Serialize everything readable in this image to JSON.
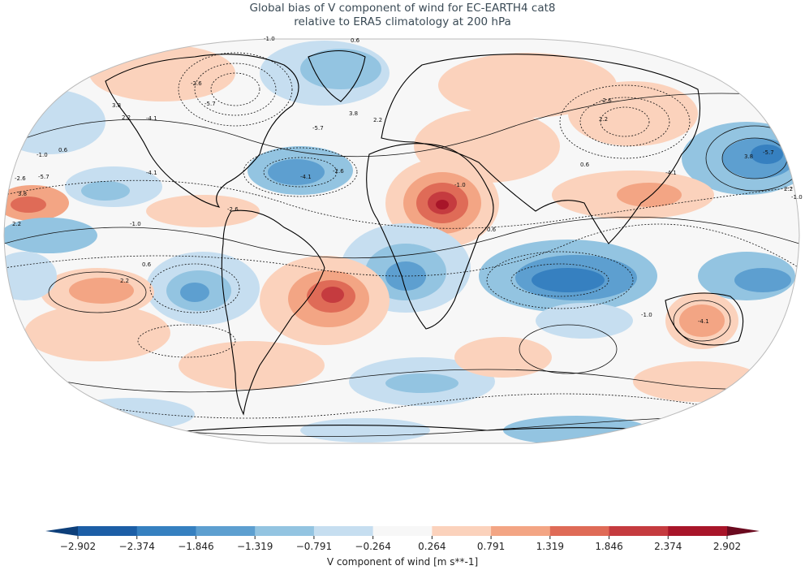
{
  "title": {
    "line1": "Global bias of V component of wind for EC-EARTH4 cat8",
    "line2": "relative to ERA5 climatology at 200 hPa"
  },
  "colorbar": {
    "label": "V component of wind [m s**-1]",
    "ticks": [
      "−2.902",
      "−2.374",
      "−1.846",
      "−1.319",
      "−0.791",
      "−0.264",
      "0.264",
      "0.791",
      "1.319",
      "1.846",
      "2.374",
      "2.902"
    ],
    "levels": [
      -2.902,
      -2.374,
      -1.846,
      -1.319,
      -0.791,
      -0.264,
      0.264,
      0.791,
      1.319,
      1.846,
      2.374,
      2.902
    ],
    "colors": [
      "#1c5ea6",
      "#3680c0",
      "#5d9fd0",
      "#93c4e1",
      "#c6def0",
      "#f7f7f7",
      "#fbd2bc",
      "#f3a584",
      "#df6b57",
      "#c53b3f",
      "#a81529"
    ],
    "under_color": "#0d3f7a",
    "over_color": "#6b0a1f"
  },
  "contour_labels": [
    "-1.0",
    "0.6",
    "-2.6",
    "-5.7",
    "3.8",
    "2.2",
    "-4.1",
    "-1.0",
    "0.6",
    "-2.6",
    "-5.7",
    "-4.1",
    "3.8",
    "2.2",
    "-1.0",
    "-2.6",
    "-4.1",
    "-5.7",
    "3.8",
    "2.2",
    "0.6",
    "-1.0",
    "-2.6",
    "2.2",
    "0.6",
    "-4.1",
    "-5.7",
    "3.8",
    "2.2",
    "-1.0",
    "-2.6",
    "0.6",
    "2.2",
    "-4.1",
    "-1.0"
  ],
  "projection": "Robinson",
  "colormap": "RdBu_r"
}
